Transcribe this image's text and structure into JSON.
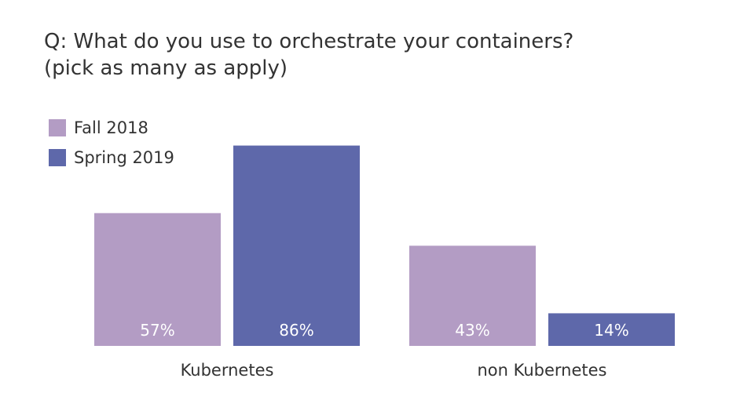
{
  "chart_data": {
    "type": "bar",
    "title": "Q: What do you use to orchestrate your containers?",
    "subtitle": "(pick as many as apply)",
    "categories": [
      "Kubernetes",
      "non Kubernetes"
    ],
    "series": [
      {
        "name": "Fall 2018",
        "color": "#b39cc4",
        "values": [
          57,
          43
        ],
        "labels": [
          "57%",
          "43%"
        ]
      },
      {
        "name": "Spring 2019",
        "color": "#5e68aa",
        "values": [
          86,
          14
        ],
        "labels": [
          "86%",
          "14%"
        ]
      }
    ],
    "ylim": [
      0,
      100
    ],
    "grid": false,
    "legend": "top-left"
  }
}
